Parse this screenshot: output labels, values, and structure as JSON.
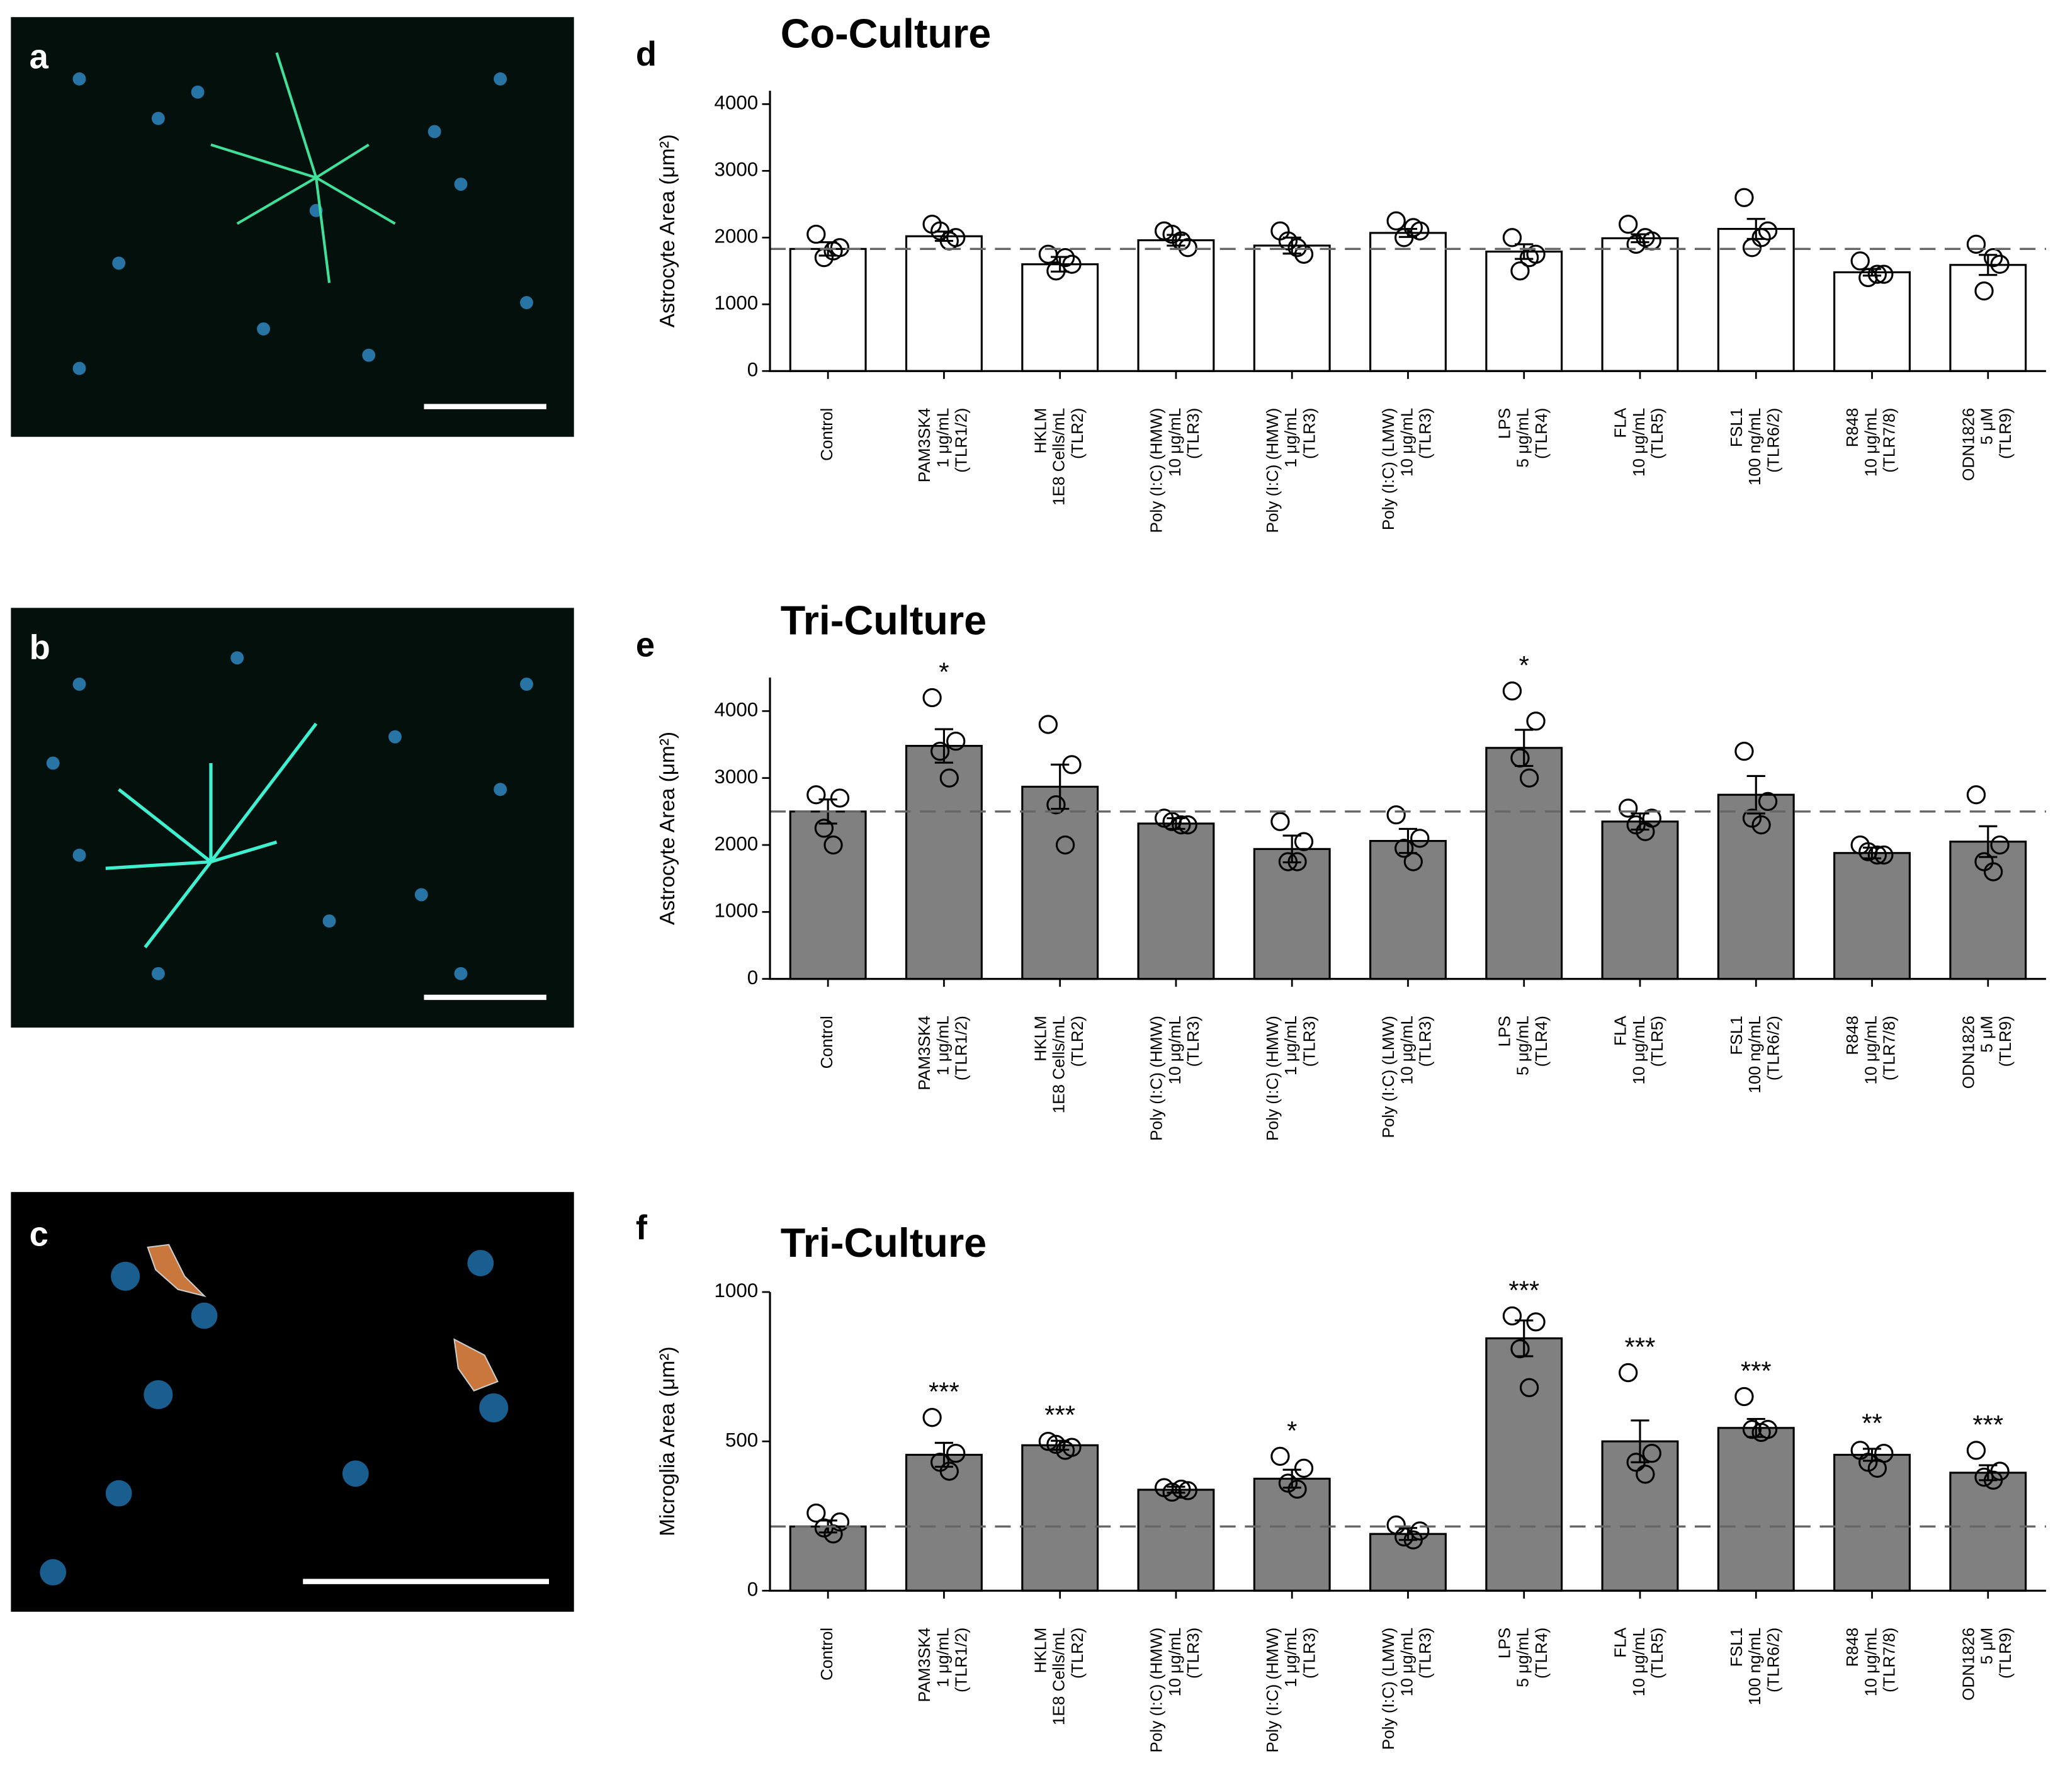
{
  "panels": [
    {
      "label": "a"
    },
    {
      "label": "b"
    },
    {
      "label": "c"
    }
  ],
  "chart_data": [
    {
      "type": "bar",
      "panel_label": "d",
      "title": "Co-Culture",
      "y_label": "Astrocyte Area (μm²)",
      "categories": [
        [
          "Control"
        ],
        [
          "PAM3SK4",
          "1 μg/mL",
          "(TLR1/2)"
        ],
        [
          "HKLM",
          "1E8 Cells/mL",
          "(TLR2)"
        ],
        [
          "Poly (I:C) (HMW)",
          "10 μg/mL",
          "(TLR3)"
        ],
        [
          "Poly (I:C) (HMW)",
          "1 μg/mL",
          "(TLR3)"
        ],
        [
          "Poly (I:C) (LMW)",
          "10 μg/mL",
          "(TLR3)"
        ],
        [
          "LPS",
          "5 μg/mL",
          "(TLR4)"
        ],
        [
          "FLA",
          "10 μg/mL",
          "(TLR5)"
        ],
        [
          "FSL1",
          "100 ng/mL",
          "(TLR6/2)"
        ],
        [
          "R848",
          "10 μg/mL",
          "(TLR7/8)"
        ],
        [
          "ODN1826",
          "5 μM",
          "(TLR9)"
        ]
      ],
      "values": [
        1830,
        2020,
        1600,
        1960,
        1880,
        2070,
        1790,
        1990,
        2130,
        1480,
        1590
      ],
      "errors": [
        100,
        70,
        110,
        80,
        120,
        60,
        110,
        60,
        150,
        50,
        150
      ],
      "points": [
        [
          2050,
          1850,
          1700,
          1800
        ],
        [
          2200,
          2000,
          2100,
          1950
        ],
        [
          1750,
          1600,
          1500,
          1700
        ],
        [
          2100,
          1850,
          2050,
          1950
        ],
        [
          2100,
          1750,
          1950,
          1850
        ],
        [
          2250,
          2100,
          2000,
          2150
        ],
        [
          2000,
          1750,
          1500,
          1700
        ],
        [
          2200,
          1950,
          1900,
          2000
        ],
        [
          2600,
          2100,
          1850,
          2000
        ],
        [
          1650,
          1450,
          1400,
          1450
        ],
        [
          1900,
          1600,
          1200,
          1700
        ]
      ],
      "annotations": [
        null,
        null,
        null,
        null,
        null,
        null,
        null,
        null,
        null,
        null,
        null
      ],
      "reference_line": 1830,
      "color": "#ffffff",
      "ylim": [
        0,
        4200
      ],
      "yticks": [
        0,
        1000,
        2000,
        3000,
        4000
      ]
    },
    {
      "type": "bar",
      "panel_label": "e",
      "title": "Tri-Culture",
      "y_label": "Astrocyte Area (μm²)",
      "categories": [
        [
          "Control"
        ],
        [
          "PAM3SK4",
          "1 μg/mL",
          "(TLR1/2)"
        ],
        [
          "HKLM",
          "1E8 Cells/mL",
          "(TLR2)"
        ],
        [
          "Poly (I:C) (HMW)",
          "10 μg/mL",
          "(TLR3)"
        ],
        [
          "Poly (I:C) (HMW)",
          "1 μg/mL",
          "(TLR3)"
        ],
        [
          "Poly (I:C) (LMW)",
          "10 μg/mL",
          "(TLR3)"
        ],
        [
          "LPS",
          "5 μg/mL",
          "(TLR4)"
        ],
        [
          "FLA",
          "10 μg/mL",
          "(TLR5)"
        ],
        [
          "FSL1",
          "100 ng/mL",
          "(TLR6/2)"
        ],
        [
          "R848",
          "10 μg/mL",
          "(TLR7/8)"
        ],
        [
          "ODN1826",
          "5 μM",
          "(TLR9)"
        ]
      ],
      "values": [
        2500,
        3480,
        2870,
        2320,
        1940,
        2060,
        3450,
        2350,
        2750,
        1880,
        2050
      ],
      "errors": [
        180,
        250,
        330,
        80,
        200,
        180,
        270,
        120,
        280,
        80,
        230
      ],
      "points": [
        [
          2750,
          2700,
          2250,
          2000
        ],
        [
          4200,
          3550,
          3400,
          3000
        ],
        [
          3800,
          3200,
          2600,
          2000
        ],
        [
          2400,
          2300,
          2350,
          2300
        ],
        [
          2350,
          2050,
          1750,
          1750
        ],
        [
          2450,
          2100,
          1950,
          1750
        ],
        [
          4300,
          3850,
          3300,
          3000
        ],
        [
          2550,
          2400,
          2300,
          2200
        ],
        [
          3400,
          2650,
          2400,
          2300
        ],
        [
          2000,
          1850,
          1900,
          1850
        ],
        [
          2750,
          2000,
          1750,
          1600
        ]
      ],
      "annotations": [
        null,
        "*",
        null,
        null,
        null,
        null,
        "*",
        null,
        null,
        null,
        null
      ],
      "reference_line": 2500,
      "color": "#808080",
      "ylim": [
        0,
        4500
      ],
      "yticks": [
        0,
        1000,
        2000,
        3000,
        4000
      ]
    },
    {
      "type": "bar",
      "panel_label": "f",
      "title": "Tri-Culture",
      "y_label": "Microglia Area (μm²)",
      "categories": [
        [
          "Control"
        ],
        [
          "PAM3SK4",
          "1 μg/mL",
          "(TLR1/2)"
        ],
        [
          "HKLM",
          "1E8 Cells/mL",
          "(TLR2)"
        ],
        [
          "Poly (I:C) (HMW)",
          "10 μg/mL",
          "(TLR3)"
        ],
        [
          "Poly (I:C) (HMW)",
          "1 μg/mL",
          "(TLR3)"
        ],
        [
          "Poly (I:C) (LMW)",
          "10 μg/mL",
          "(TLR3)"
        ],
        [
          "LPS",
          "5 μg/mL",
          "(TLR4)"
        ],
        [
          "FLA",
          "10 μg/mL",
          "(TLR5)"
        ],
        [
          "FSL1",
          "100 ng/mL",
          "(TLR6/2)"
        ],
        [
          "R848",
          "10 μg/mL",
          "(TLR7/8)"
        ],
        [
          "ODN1826",
          "5 μM",
          "(TLR9)"
        ]
      ],
      "values": [
        215,
        455,
        487,
        338,
        375,
        190,
        845,
        500,
        545,
        455,
        395
      ],
      "errors": [
        20,
        40,
        15,
        10,
        30,
        20,
        60,
        70,
        30,
        20,
        25
      ],
      "points": [
        [
          260,
          230,
          210,
          190
        ],
        [
          580,
          460,
          430,
          400
        ],
        [
          500,
          480,
          490,
          470
        ],
        [
          345,
          335,
          330,
          340
        ],
        [
          450,
          410,
          360,
          340
        ],
        [
          220,
          200,
          180,
          170
        ],
        [
          920,
          900,
          810,
          680
        ],
        [
          730,
          460,
          430,
          390
        ],
        [
          650,
          540,
          540,
          530
        ],
        [
          470,
          460,
          430,
          410
        ],
        [
          470,
          400,
          380,
          370
        ]
      ],
      "annotations": [
        null,
        "***",
        "***",
        null,
        "*",
        null,
        "***",
        "***",
        "***",
        "**",
        "***"
      ],
      "reference_line": 215,
      "color": "#808080",
      "ylim": [
        0,
        1000
      ],
      "yticks": [
        0,
        500,
        1000
      ]
    }
  ]
}
